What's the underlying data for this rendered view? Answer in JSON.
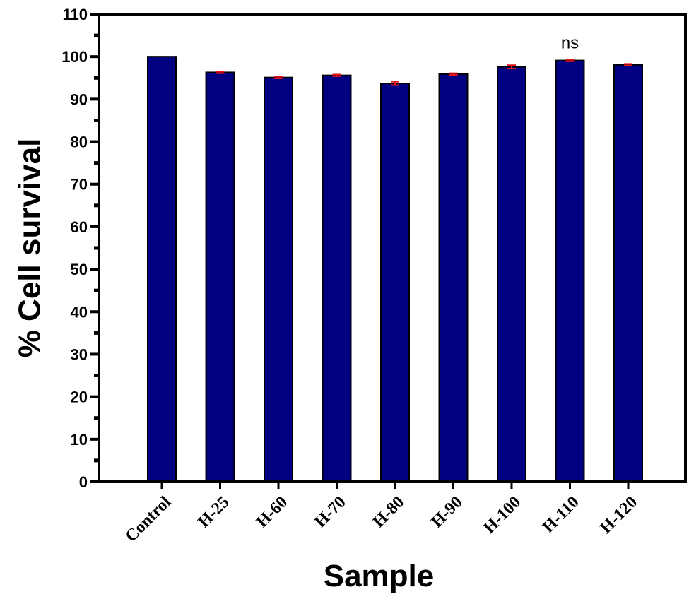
{
  "chart_data": {
    "type": "bar",
    "title": "",
    "xlabel": "Sample",
    "ylabel": "% Cell survival",
    "ylim": [
      0,
      110
    ],
    "yticks": [
      "0",
      "10",
      "20",
      "30",
      "40",
      "50",
      "60",
      "70",
      "80",
      "90",
      "100",
      "110"
    ],
    "categories": [
      "Control",
      "H-25",
      "H-60",
      "H-70",
      "H-80",
      "H-90",
      "H-100",
      "H-110",
      "H-120"
    ],
    "series": [
      {
        "values": [
          100,
          96.3,
          95.1,
          95.6,
          93.7,
          95.9,
          97.6,
          99.1,
          98.1
        ],
        "errors": [
          0,
          0.2,
          0.2,
          0.2,
          0.4,
          0.2,
          0.4,
          0.2,
          0.2
        ]
      }
    ],
    "annotations": [
      {
        "category": "H-110",
        "text": "ns"
      }
    ],
    "grid": false,
    "legend": "none",
    "colors": {
      "bar_fill": "#000080",
      "bar_edge": "#000000",
      "error_bar": "#e8141b",
      "axis": "#000000"
    }
  }
}
